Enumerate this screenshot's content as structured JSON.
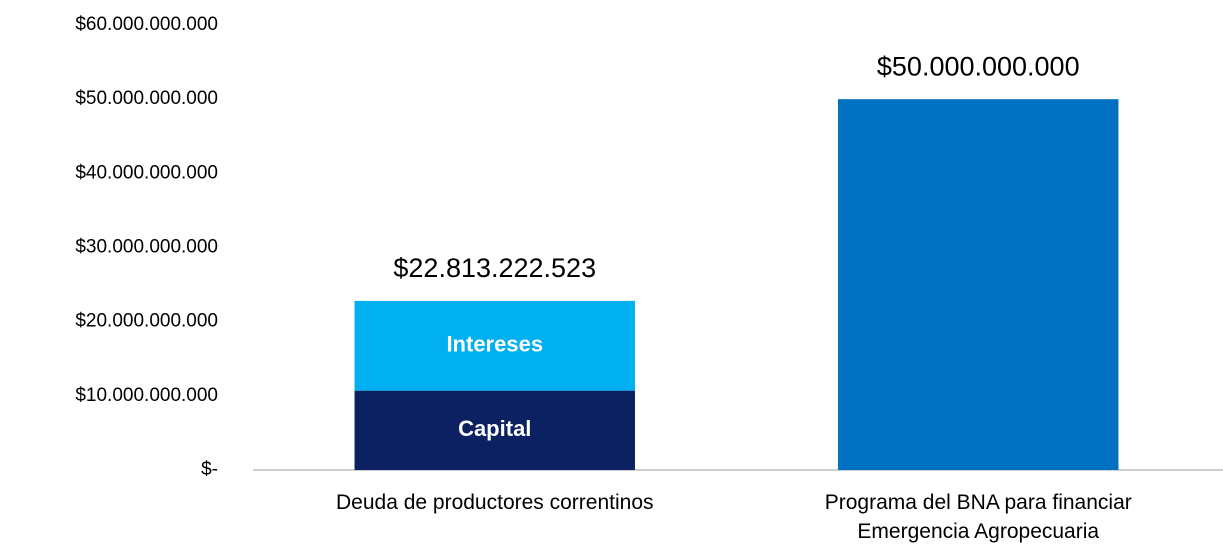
{
  "chart_data": {
    "type": "stacked_bar",
    "categories": [
      "Deuda de productores correntinos",
      "Programa del BNA para financiar Emergencia Agropecuaria"
    ],
    "series": [
      {
        "name": "Capital",
        "color": "#0b2162",
        "values": [
          10700000000,
          null
        ]
      },
      {
        "name": "Intereses",
        "color": "#00b0f0",
        "values": [
          12100000000,
          null
        ]
      },
      {
        "color": "#0070c0",
        "values": [
          null,
          50000000000
        ]
      }
    ],
    "totals": [
      22813222523,
      50000000000
    ],
    "total_labels": [
      "$22.813.222.523",
      "$50.000.000.000"
    ],
    "ylim": [
      0,
      60000000000
    ],
    "yticks": [
      {
        "value": 0,
        "label": "$-"
      },
      {
        "value": 10000000000,
        "label": "$10.000.000.000"
      },
      {
        "value": 20000000000,
        "label": "$20.000.000.000"
      },
      {
        "value": 30000000000,
        "label": "$30.000.000.000"
      },
      {
        "value": 40000000000,
        "label": "$40.000.000.000"
      },
      {
        "value": 50000000000,
        "label": "$50.000.000.000"
      },
      {
        "value": 60000000000,
        "label": "$60.000.000.000"
      }
    ],
    "grid": false
  }
}
